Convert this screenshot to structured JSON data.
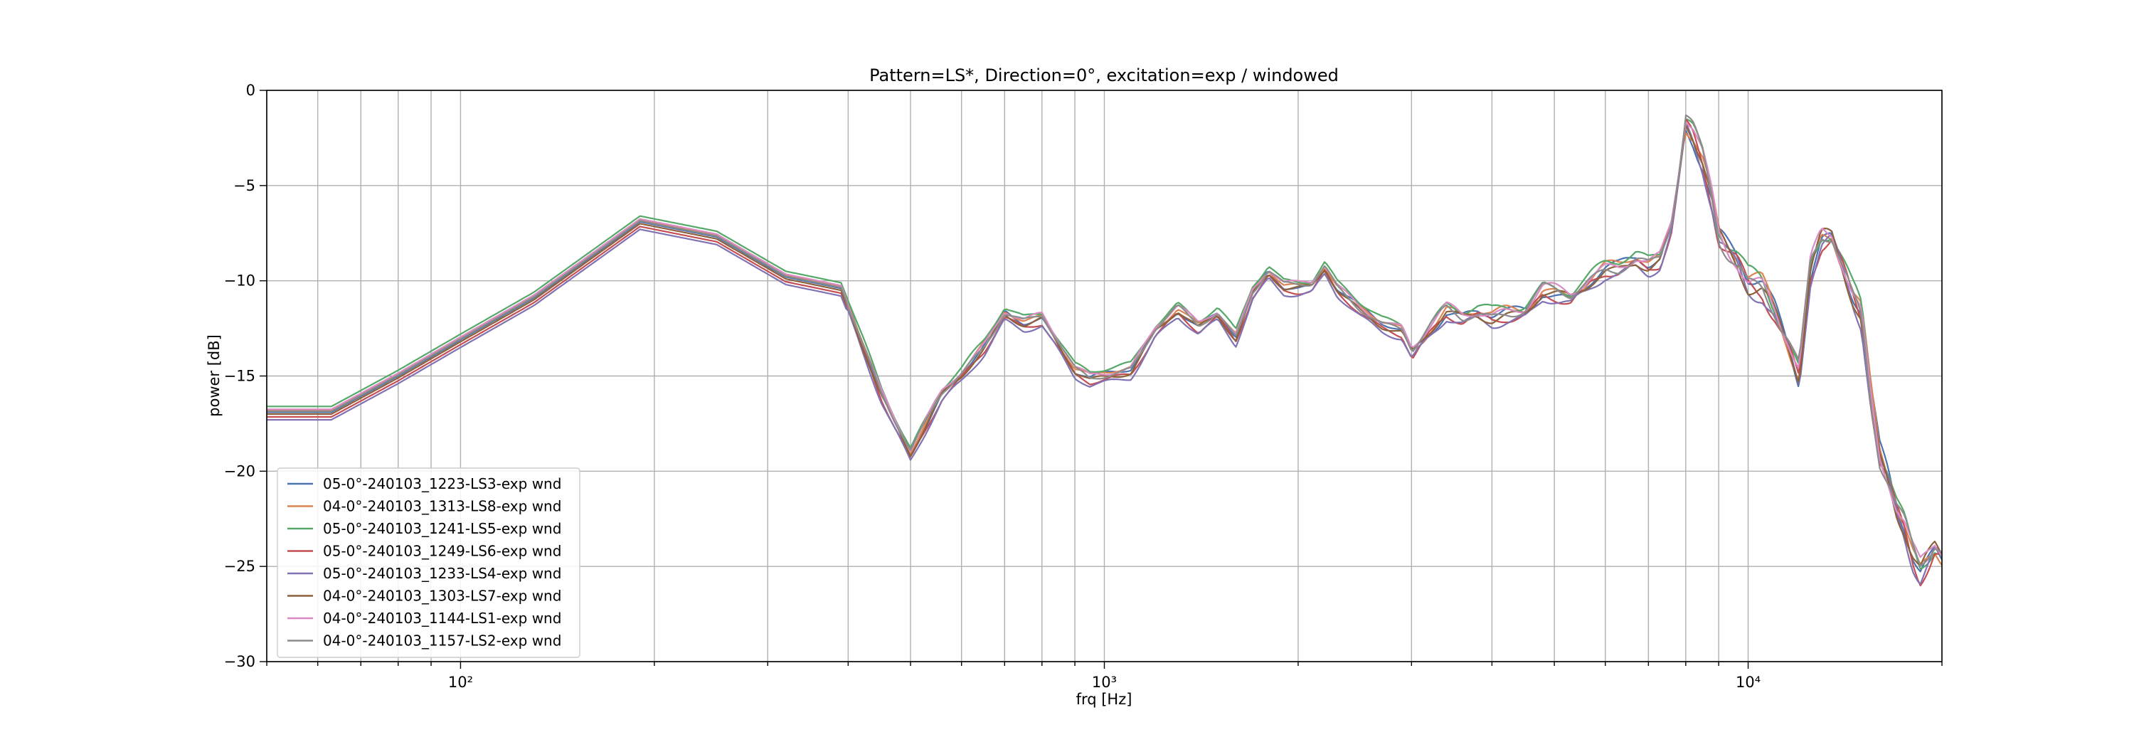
{
  "chart_data": {
    "type": "line",
    "title": "Pattern=LS*, Direction=0°, excitation=exp / windowed",
    "xlabel": "frq [Hz]",
    "ylabel": "power [dB]",
    "xscale": "log",
    "xlim": [
      50,
      20000
    ],
    "ylim": [
      -30,
      0
    ],
    "x_ticks": [
      {
        "value": 100,
        "label": "10²"
      },
      {
        "value": 1000,
        "label": "10³"
      },
      {
        "value": 10000,
        "label": "10⁴"
      }
    ],
    "y_ticks": [
      {
        "value": 0,
        "label": "0"
      },
      {
        "value": -5,
        "label": "−5"
      },
      {
        "value": -10,
        "label": "−10"
      },
      {
        "value": -15,
        "label": "−15"
      },
      {
        "value": -20,
        "label": "−20"
      },
      {
        "value": -25,
        "label": "−25"
      },
      {
        "value": -30,
        "label": "−30"
      }
    ],
    "grid": true,
    "legend_position": "lower-left",
    "base_curve": {
      "x": [
        50,
        63,
        80,
        100,
        130,
        190,
        250,
        320,
        390,
        450,
        500,
        560,
        600,
        650,
        700,
        750,
        800,
        850,
        900,
        950,
        1000,
        1100,
        1200,
        1300,
        1400,
        1500,
        1600,
        1700,
        1800,
        1900,
        2000,
        2100,
        2200,
        2300,
        2500,
        2700,
        2900,
        3000,
        3200,
        3400,
        3600,
        3800,
        4000,
        4200,
        4500,
        4800,
        5000,
        5300,
        5600,
        6000,
        6300,
        6700,
        7000,
        7300,
        7600,
        7800,
        8000,
        8200,
        8500,
        8800,
        9000,
        9300,
        9600,
        10000,
        10500,
        11000,
        11500,
        12000,
        12500,
        13000,
        13500,
        14000,
        14500,
        15000,
        15500,
        16000,
        16500,
        17000,
        17500,
        18000,
        18500,
        19000,
        19500,
        20000
      ],
      "y": [
        -16.9,
        -16.9,
        -15.0,
        -13.1,
        -10.9,
        -6.9,
        -7.7,
        -9.8,
        -10.4,
        -15.8,
        -19.0,
        -16.0,
        -15.0,
        -13.5,
        -11.6,
        -12.1,
        -11.9,
        -13.4,
        -14.8,
        -15.2,
        -15.0,
        -14.6,
        -12.5,
        -11.5,
        -12.5,
        -11.8,
        -13.0,
        -10.5,
        -9.4,
        -10.2,
        -10.3,
        -10.3,
        -9.4,
        -10.5,
        -11.5,
        -12.2,
        -12.5,
        -13.6,
        -12.6,
        -11.7,
        -12.1,
        -11.8,
        -11.9,
        -11.6,
        -11.4,
        -10.4,
        -10.6,
        -11.0,
        -10.4,
        -9.5,
        -9.3,
        -8.7,
        -9.0,
        -8.7,
        -7.0,
        -4.5,
        -1.7,
        -2.4,
        -4.0,
        -6.2,
        -8.0,
        -8.6,
        -9.0,
        -10.0,
        -10.0,
        -11.2,
        -12.8,
        -14.8,
        -9.5,
        -8.0,
        -8.0,
        -9.5,
        -11.0,
        -12.0,
        -16.0,
        -19.0,
        -20.0,
        -21.5,
        -22.5,
        -24.0,
        -25.0,
        -24.5,
        -24.0,
        -24.5
      ]
    },
    "series": [
      {
        "name": "05-0°-240103_1223-LS3-exp wnd",
        "color": "#4c72b0",
        "offset": 0.0,
        "phase": 0.3
      },
      {
        "name": "04-0°-240103_1313-LS8-exp wnd",
        "color": "#dd8452",
        "offset": 0.1,
        "phase": 1.1
      },
      {
        "name": "05-0°-240103_1241-LS5-exp wnd",
        "color": "#55a868",
        "offset": 0.3,
        "phase": 2.0
      },
      {
        "name": "05-0°-240103_1249-LS6-exp wnd",
        "color": "#c44e52",
        "offset": -0.25,
        "phase": 2.7
      },
      {
        "name": "05-0°-240103_1233-LS4-exp wnd",
        "color": "#8172b3",
        "offset": -0.4,
        "phase": 3.4
      },
      {
        "name": "04-0°-240103_1303-LS7-exp wnd",
        "color": "#8c613c",
        "offset": -0.1,
        "phase": 4.2
      },
      {
        "name": "04-0°-240103_1144-LS1-exp wnd",
        "color": "#da8bc3",
        "offset": 0.15,
        "phase": 5.0
      },
      {
        "name": "04-0°-240103_1157-LS2-exp wnd",
        "color": "#8c8c8c",
        "offset": 0.05,
        "phase": 5.7
      }
    ]
  }
}
